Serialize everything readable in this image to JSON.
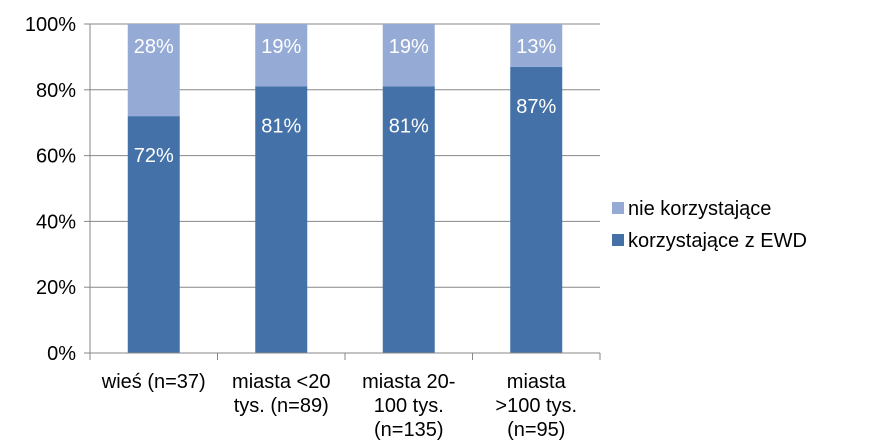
{
  "chart_data": {
    "type": "bar",
    "stacked": true,
    "percent_stacked": true,
    "categories": [
      [
        "wieś (n=37)"
      ],
      [
        "miasta <20",
        "tys. (n=89)"
      ],
      [
        "miasta 20-",
        "100 tys.",
        "(n=135)"
      ],
      [
        "miasta",
        ">100 tys.",
        "(n=95)"
      ]
    ],
    "series": [
      {
        "name": "korzystające z EWD",
        "color": "#4472a8",
        "values": [
          72,
          81,
          81,
          87
        ],
        "labels": [
          "72%",
          "81%",
          "81%",
          "87%"
        ]
      },
      {
        "name": "nie korzystające",
        "color": "#95abd5",
        "values": [
          28,
          19,
          19,
          13
        ],
        "labels": [
          "28%",
          "19%",
          "19%",
          "13%"
        ]
      }
    ],
    "ylim": [
      0,
      100
    ],
    "yticks": [
      "0%",
      "20%",
      "40%",
      "60%",
      "80%",
      "100%"
    ],
    "grid": true,
    "legend": {
      "position": "right",
      "entries": [
        "nie korzystające",
        "korzystające z EWD"
      ]
    }
  }
}
